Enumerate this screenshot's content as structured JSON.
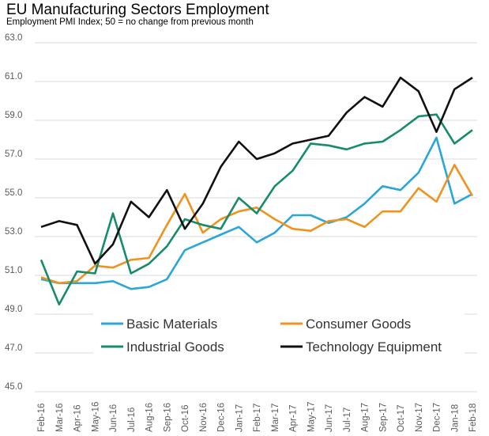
{
  "chart_data": {
    "type": "line",
    "title": "EU Manufacturing Sectors Employment",
    "subtitle": "Employment PMI Index; 50 = no change from previous month",
    "xlabel": "",
    "ylabel": "",
    "ylim": [
      45.0,
      63.0
    ],
    "yticks": [
      "45.0",
      "47.0",
      "49.0",
      "51.0",
      "53.0",
      "55.0",
      "57.0",
      "59.0",
      "61.0",
      "63.0"
    ],
    "grid": true,
    "legend_position": "bottom-center",
    "categories": [
      "Feb-16",
      "Mar-16",
      "Apr-16",
      "May-16",
      "Jun-16",
      "Jul-16",
      "Aug-16",
      "Sep-16",
      "Oct-16",
      "Nov-16",
      "Dec-16",
      "Jan-17",
      "Feb-17",
      "Mar-17",
      "Apr-17",
      "May-17",
      "Jun-17",
      "Jul-17",
      "Aug-17",
      "Sep-17",
      "Oct-17",
      "Nov-17",
      "Dec-17",
      "Jan-18",
      "Feb-18"
    ],
    "series": [
      {
        "name": "Basic Materials",
        "color": "#29a7d8",
        "values": [
          50.8,
          50.6,
          50.6,
          50.6,
          50.7,
          50.3,
          50.4,
          50.8,
          52.3,
          52.7,
          53.1,
          53.5,
          52.7,
          53.2,
          54.1,
          54.1,
          53.7,
          54.0,
          54.7,
          55.6,
          55.4,
          56.3,
          58.1,
          54.7,
          55.2
        ]
      },
      {
        "name": "Consumer Goods",
        "color": "#f0921e",
        "values": [
          50.9,
          50.6,
          50.7,
          51.5,
          51.4,
          51.8,
          51.9,
          53.6,
          55.2,
          53.2,
          53.9,
          54.3,
          54.5,
          53.9,
          53.4,
          53.3,
          53.8,
          53.9,
          53.5,
          54.3,
          54.3,
          55.5,
          54.8,
          56.7,
          55.1
        ]
      },
      {
        "name": "Industrial Goods",
        "color": "#168b6e",
        "values": [
          51.8,
          49.5,
          51.2,
          51.1,
          54.2,
          51.1,
          51.6,
          52.5,
          53.9,
          53.6,
          53.4,
          55.0,
          54.2,
          55.6,
          56.4,
          57.8,
          57.7,
          57.5,
          57.8,
          57.9,
          58.5,
          59.2,
          59.3,
          57.8,
          58.5
        ]
      },
      {
        "name": "Technology Equipment",
        "color": "#111111",
        "values": [
          53.5,
          53.8,
          53.6,
          51.6,
          52.6,
          54.8,
          54.0,
          55.4,
          53.4,
          54.7,
          56.6,
          57.9,
          57.0,
          57.3,
          57.8,
          58.0,
          58.2,
          59.4,
          60.2,
          59.7,
          61.2,
          60.5,
          58.4,
          60.6,
          61.2
        ]
      }
    ]
  }
}
